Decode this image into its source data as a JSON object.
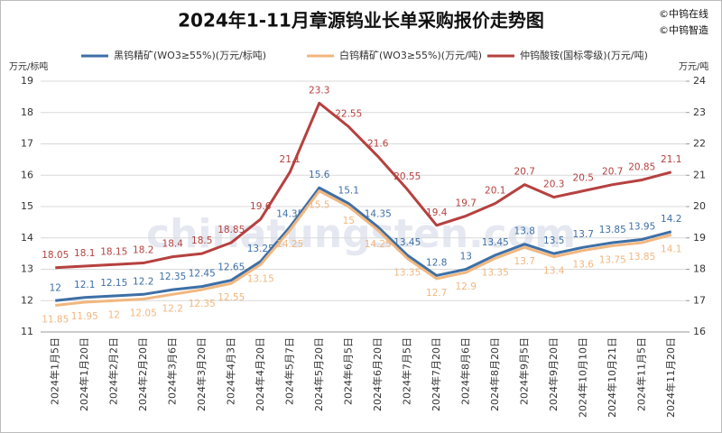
{
  "chart_data": {
    "type": "line",
    "title": "2024年1-11月章源钨业长单采购报价走势图",
    "copyright": [
      "©中钨在线",
      "©中钨智造"
    ],
    "watermark": "chinatungsten.com",
    "y_label": "万元/标吨",
    "y2_label": "万元/吨",
    "categories": [
      "2024年1月5日",
      "2024年1月20日",
      "2024年2月2日",
      "2024年2月20日",
      "2024年3月6日",
      "2024年3月20日",
      "2024年4月3日",
      "2024年4月20日",
      "2024年5月7日",
      "2024年5月20日",
      "2024年6月5日",
      "2024年6月20日",
      "2024年7月5日",
      "2024年7月20日",
      "2024年8月6日",
      "2024年8月20日",
      "2024年9月5日",
      "2024年9月20日",
      "2024年10月10日",
      "2024年10月21日",
      "2024年11月5日",
      "2024年11月20日"
    ],
    "series": [
      {
        "name": "黑钨精矿(WO3≥55%)(万元/标吨)",
        "color": "#3d6fa6",
        "axis": "y",
        "values": [
          12,
          12.1,
          12.15,
          12.2,
          12.35,
          12.45,
          12.65,
          13.25,
          14.35,
          15.6,
          15.1,
          14.35,
          13.45,
          12.8,
          13,
          13.45,
          13.8,
          13.5,
          13.7,
          13.85,
          13.95,
          14.2
        ]
      },
      {
        "name": "白钨精矿(WO3≥55%)(万元/吨)",
        "color": "#f1b77f",
        "axis": "y",
        "values": [
          11.85,
          11.95,
          12,
          12.05,
          12.2,
          12.35,
          12.55,
          13.15,
          14.25,
          15.5,
          15,
          14.25,
          13.35,
          12.7,
          12.9,
          13.35,
          13.7,
          13.4,
          13.6,
          13.75,
          13.85,
          14.1
        ]
      },
      {
        "name": "仲钨酸铵(国标零级)(万元/吨)",
        "color": "#b5413f",
        "axis": "y2",
        "values": [
          18.05,
          18.1,
          18.15,
          18.2,
          18.4,
          18.5,
          18.85,
          19.6,
          21.1,
          23.3,
          22.55,
          21.6,
          20.55,
          19.4,
          19.7,
          20.1,
          20.7,
          20.3,
          20.5,
          20.7,
          20.85,
          21.1
        ]
      }
    ],
    "ylim": [
      11,
      19
    ],
    "yticks": [
      11,
      12,
      13,
      14,
      15,
      16,
      17,
      18,
      19
    ],
    "y2lim": [
      16,
      24
    ],
    "y2ticks": [
      16,
      17,
      18,
      19,
      20,
      21,
      22,
      23,
      24
    ],
    "grid": true
  }
}
